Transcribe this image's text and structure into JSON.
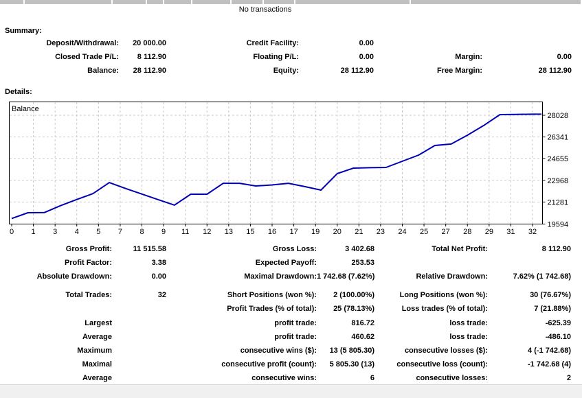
{
  "transactions_table": {
    "empty_message": "No transactions"
  },
  "summary": {
    "title": "Summary:",
    "rows": [
      {
        "cells": [
          "Deposit/Withdrawal:",
          "20 000.00",
          "Credit Facility:",
          "0.00",
          "",
          ""
        ]
      },
      {
        "cells": [
          "Closed Trade P/L:",
          "8 112.90",
          "Floating P/L:",
          "0.00",
          "Margin:",
          "0.00"
        ]
      },
      {
        "cells": [
          "Balance:",
          "28 112.90",
          "Equity:",
          "28 112.90",
          "Free Margin:",
          "28 112.90"
        ]
      }
    ]
  },
  "details": {
    "title": "Details:",
    "groups": [
      {
        "rows": [
          {
            "cells": [
              "Gross Profit:",
              "11 515.58",
              "Gross Loss:",
              "3 402.68",
              "Total Net Profit:",
              "8 112.90"
            ]
          },
          {
            "cells": [
              "Profit Factor:",
              "3.38",
              "Expected Payoff:",
              "253.53",
              "",
              ""
            ]
          },
          {
            "cells": [
              "Absolute Drawdown:",
              "0.00",
              "Maximal Drawdown:",
              "1 742.68 (7.62%)",
              "Relative Drawdown:",
              "7.62% (1 742.68)"
            ]
          }
        ]
      },
      {
        "rows": [
          {
            "cells": [
              "Total Trades:",
              "32",
              "Short Positions (won %):",
              "2 (100.00%)",
              "Long Positions (won %):",
              "30 (76.67%)"
            ]
          },
          {
            "cells": [
              "",
              "",
              "Profit Trades (% of total):",
              "25 (78.13%)",
              "Loss trades (% of total):",
              "7 (21.88%)"
            ]
          }
        ]
      },
      {
        "rows": [
          {
            "cells": [
              "Largest",
              "",
              "profit trade:",
              "816.72",
              "loss trade:",
              "-625.39"
            ]
          },
          {
            "cells": [
              "Average",
              "",
              "profit trade:",
              "460.62",
              "loss trade:",
              "-486.10"
            ]
          },
          {
            "cells": [
              "Maximum",
              "",
              "consecutive wins ($):",
              "13 (5 805.30)",
              "consecutive losses ($):",
              "4 (-1 742.68)"
            ]
          },
          {
            "cells": [
              "Maximal",
              "",
              "consecutive profit (count):",
              "5 805.30 (13)",
              "consecutive loss (count):",
              "-1 742.68 (4)"
            ]
          },
          {
            "cells": [
              "Average",
              "",
              "consecutive wins:",
              "6",
              "consecutive losses:",
              "2"
            ]
          }
        ]
      }
    ]
  },
  "chart_data": {
    "type": "line",
    "title": "Balance",
    "legend_position": "top-left-inside",
    "grid": true,
    "grid_color": "#c9c9c9",
    "border_color": "#000000",
    "x_tick_labels": [
      "0",
      "1",
      "3",
      "4",
      "5",
      "7",
      "8",
      "9",
      "11",
      "12",
      "13",
      "15",
      "16",
      "17",
      "19",
      "20",
      "21",
      "23",
      "24",
      "25",
      "27",
      "28",
      "29",
      "31",
      "32"
    ],
    "y_tick_labels": [
      "28028",
      "26341",
      "24655",
      "22968",
      "21281",
      "19594"
    ],
    "y_gridline_values": [
      28028,
      26341,
      24655,
      22968,
      21281,
      19594
    ],
    "ylim": [
      19594,
      28028
    ],
    "xlim": [
      0,
      32
    ],
    "series": [
      {
        "name": "Balance",
        "color": "#0000b4",
        "values": [
          20000,
          20450,
          20460,
          21000,
          21480,
          21940,
          22790,
          22330,
          21900,
          21470,
          21040,
          21890,
          21890,
          22740,
          22740,
          22530,
          22610,
          22740,
          22480,
          22210,
          23490,
          23920,
          23950,
          23970,
          24450,
          24930,
          25680,
          25790,
          26480,
          27230,
          28080,
          28100,
          28112.9
        ]
      }
    ]
  },
  "colors": {
    "header_cell": "#c0c0c0",
    "footer_band": "#f0f0f0",
    "text": "#000000"
  }
}
